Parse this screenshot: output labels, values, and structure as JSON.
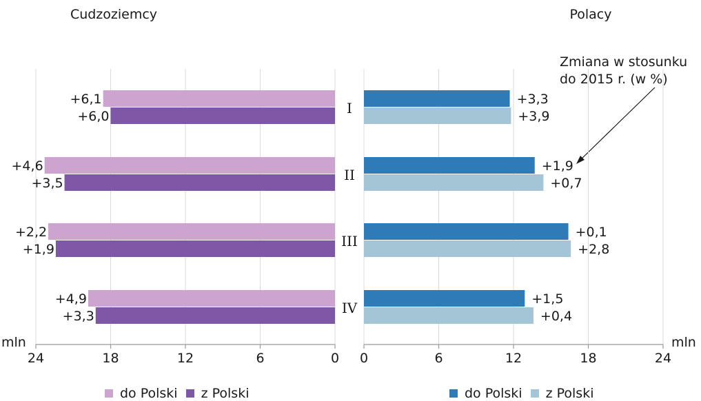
{
  "chart_data": [
    {
      "type": "bar",
      "orientation": "horizontal",
      "direction": "reversed",
      "title": "Cudzoziemcy",
      "categories": [
        "I",
        "II",
        "III",
        "IV"
      ],
      "unit": "mln",
      "xlim": [
        0,
        24
      ],
      "xticks": [
        "24",
        "18",
        "12",
        "6",
        "0"
      ],
      "grid": true,
      "legend_placement": "bottom",
      "series": [
        {
          "name": "do Polski",
          "color": "#cda3cf",
          "values": [
            18.6,
            23.3,
            23.0,
            19.8
          ],
          "labels": [
            "+6,1",
            "+4,6",
            "+2,2",
            "+4,9"
          ]
        },
        {
          "name": "z Polski",
          "color": "#7e57a6",
          "values": [
            18.0,
            21.7,
            22.4,
            19.2
          ],
          "labels": [
            "+6,0",
            "+3,5",
            "+1,9",
            "+3,3"
          ]
        }
      ]
    },
    {
      "type": "bar",
      "orientation": "horizontal",
      "title": "Polacy",
      "categories": [
        "I",
        "II",
        "III",
        "IV"
      ],
      "unit": "mln",
      "xlim": [
        0,
        24
      ],
      "xticks": [
        "0",
        "6",
        "12",
        "18",
        "24"
      ],
      "grid": true,
      "legend_placement": "bottom",
      "annotation": "Zmiana w stosunku do 2015 r. (w %)",
      "annotation_lines": [
        "Zmiana w stosunku",
        "do 2015 r. (w %)"
      ],
      "series": [
        {
          "name": "do Polski",
          "color": "#2e7bb8",
          "values": [
            11.7,
            13.7,
            16.4,
            12.9
          ],
          "labels": [
            "+3,3",
            "+1,9",
            "+0,1",
            "+1,5"
          ]
        },
        {
          "name": "z Polski",
          "color": "#a3c5d6",
          "values": [
            11.8,
            14.4,
            16.6,
            13.6
          ],
          "labels": [
            "+3,9",
            "+0,7",
            "+2,8",
            "+0,4"
          ]
        }
      ]
    }
  ]
}
